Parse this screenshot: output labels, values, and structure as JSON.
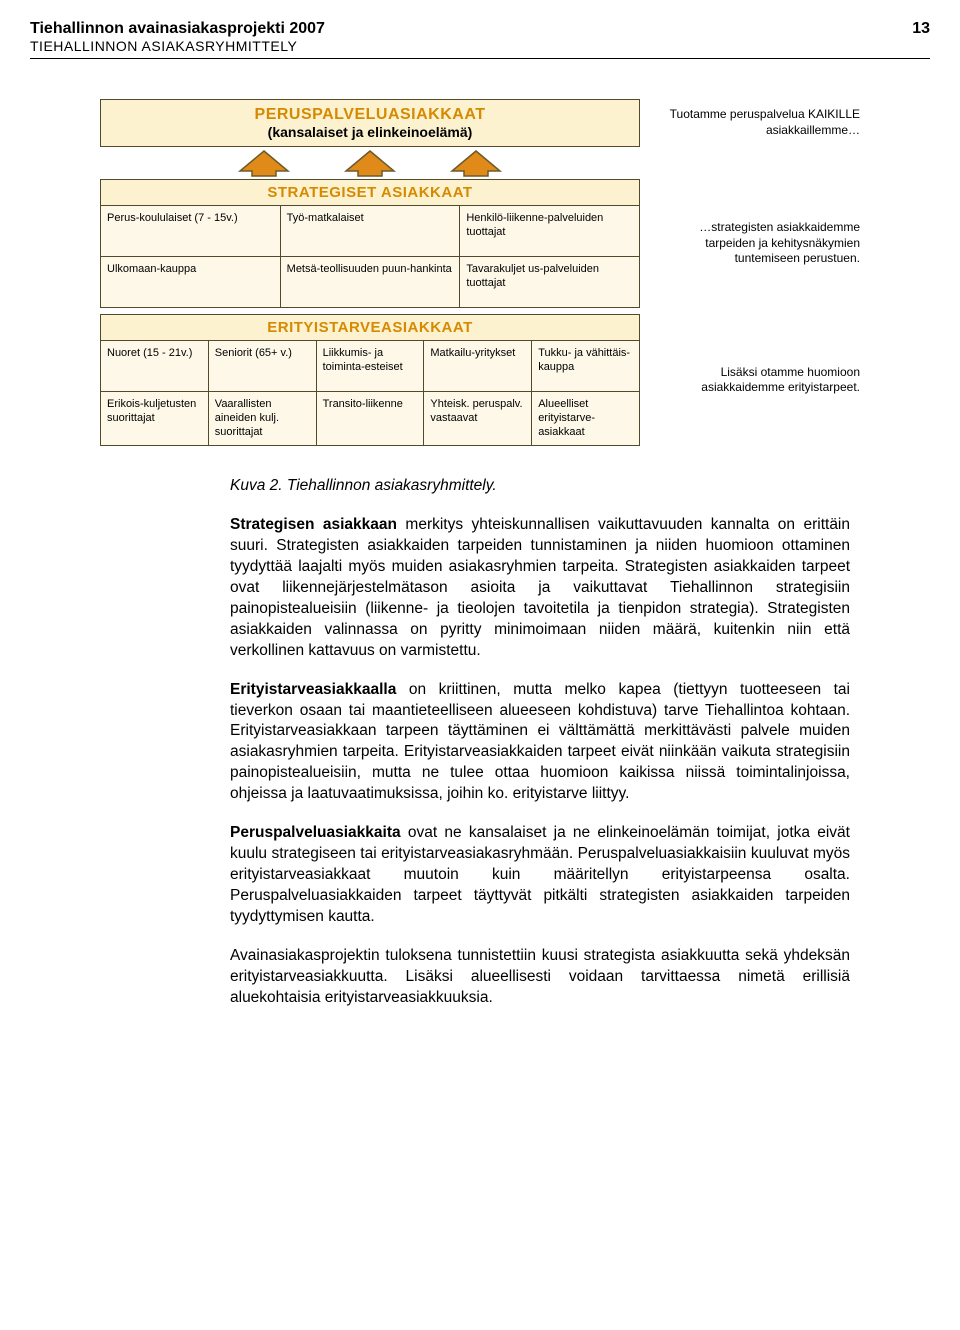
{
  "header": {
    "title": "Tiehallinnon avainasiakasprojekti 2007",
    "page_number": "13",
    "subtitle": "TIEHALLINNON ASIAKASRYHMITTELY"
  },
  "diagram": {
    "colors": {
      "box_bg_title": "#fdf2d0",
      "box_bg_cell": "#fdf8e8",
      "border": "#534a2d",
      "title_text": "#d68a00",
      "arrow_fill": "#e08a1a",
      "arrow_border": "#6b5a2a"
    },
    "tier1": {
      "title": "PERUSPALVELUASIAKKAAT",
      "subtitle": "(kansalaiset ja elinkeinoelämä)",
      "side": "Tuotamme peruspalvelua KAIKILLE asiakkaillemme…"
    },
    "tier2": {
      "title": "STRATEGISET ASIAKKAAT",
      "cells": [
        "Perus-koululaiset (7 - 15v.)",
        "Työ-matkalaiset",
        "Henkilö-liikenne-palveluiden tuottajat",
        "Ulkomaan-kauppa",
        "Metsä-teollisuuden puun-hankinta",
        "Tavarakuljet us-palveluiden tuottajat"
      ],
      "side": "…strategisten asiakkaidemme tarpeiden ja kehitysnäkymien tuntemiseen perustuen."
    },
    "tier3": {
      "title": "ERITYISTARVEASIAKKAAT",
      "cells": [
        "Nuoret (15 - 21v.)",
        "Seniorit (65+ v.)",
        "Liikkumis- ja toiminta-esteiset",
        "Matkailu-yritykset",
        "Tukku- ja vähittäis-kauppa",
        "Erikois-kuljetusten suorittajat",
        "Vaarallisten aineiden kulj. suorittajat",
        "Transito-liikenne",
        "Yhteisk. peruspalv. vastaavat",
        "Alueelliset erityistarve-asiakkaat"
      ],
      "side": "Lisäksi otamme huomioon asiakkaidemme erityistarpeet."
    }
  },
  "body": {
    "caption": "Kuva 2.   Tiehallinnon asiakasryhmittely.",
    "p1_lead": "Strategisen asiakkaan",
    "p1_rest": " merkitys yhteiskunnallisen vaikuttavuuden kannalta on erittäin suuri. Strategisten asiakkaiden tarpeiden tunnistaminen ja niiden huomioon ottaminen tyydyttää laajalti myös muiden asiakasryhmien tarpeita. Strategisten asiakkaiden tarpeet ovat liikennejärjestelmätason asioita ja vaikuttavat Tiehallinnon strategisiin painopistealueisiin (liikenne- ja tieolojen tavoitetila ja tienpidon strategia). Strategisten asiakkaiden valinnassa on pyritty minimoimaan niiden määrä, kuitenkin niin että verkollinen kattavuus on varmistettu.",
    "p2_lead": "Erityistarveasiakkaalla",
    "p2_rest": " on kriittinen, mutta melko kapea (tiettyyn tuotteeseen tai tieverkon osaan tai maantieteelliseen alueeseen kohdistuva) tarve Tiehallintoa kohtaan. Erityistarveasiakkaan tarpeen täyttäminen ei välttämättä merkittävästi palvele muiden asiakasryhmien tarpeita. Erityistarveasiakkaiden tarpeet eivät niinkään vaikuta strategisiin painopistealueisiin, mutta ne tulee ottaa huomioon kaikissa niissä toimintalinjoissa, ohjeissa ja laatuvaatimuksissa, joihin ko. erityistarve liittyy.",
    "p3_lead": "Peruspalveluasiakkaita",
    "p3_rest": " ovat ne kansalaiset ja ne elinkeinoelämän toimijat, jotka eivät kuulu strategiseen tai erityistarveasiakasryhmään. Peruspalveluasiakkaisiin kuuluvat myös erityistarveasiakkaat muutoin kuin määritellyn erityistarpeensa osalta. Peruspalveluasiakkaiden tarpeet täyttyvät pitkälti strategisten asiakkaiden tarpeiden tyydyttymisen kautta.",
    "p4": "Avainasiakasprojektin tuloksena tunnistettiin kuusi strategista asiakkuutta sekä yhdeksän erityistarveasiakkuutta. Lisäksi alueellisesti voidaan tarvittaessa nimetä erillisiä aluekohtaisia erityistarveasiakkuuksia."
  }
}
